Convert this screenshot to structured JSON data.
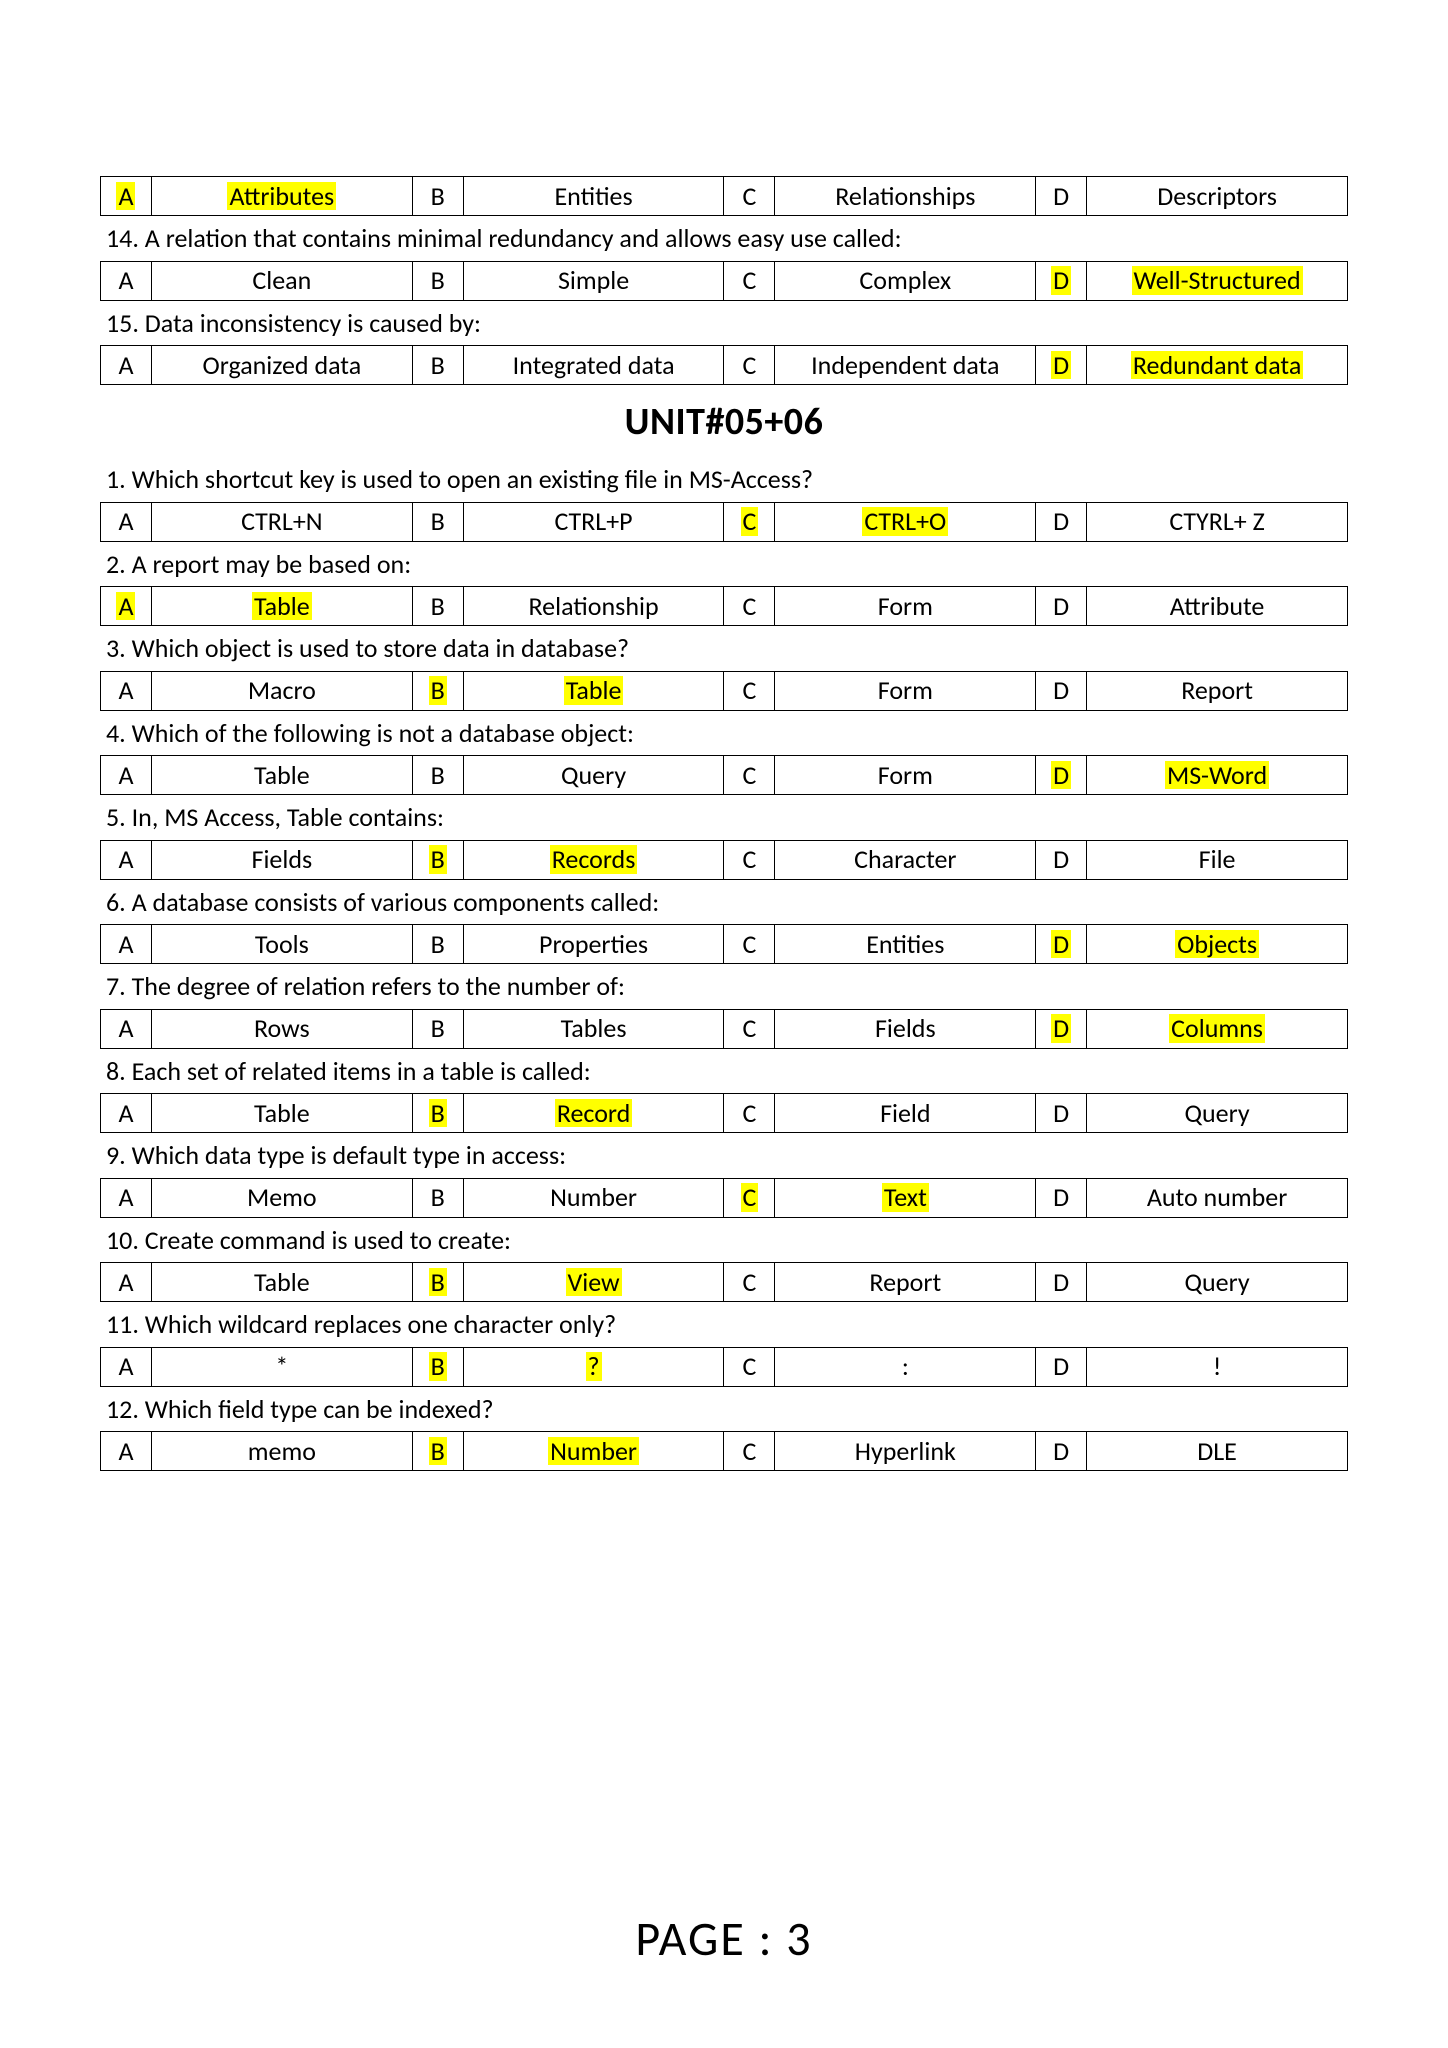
{
  "colors": {
    "highlight_bg": "#ffff00",
    "page_bg": "#ffffff",
    "text_color": "#000000",
    "border_color": "#000000"
  },
  "fontsizes": {
    "body_pt": 26,
    "unit_title_pt": 38,
    "footer_pt": 48
  },
  "preUnit": {
    "row13": {
      "A": {
        "letter": "A",
        "value": "Attributes",
        "letter_hl": true,
        "value_hl": true
      },
      "B": {
        "letter": "B",
        "value": "Entities"
      },
      "C": {
        "letter": "C",
        "value": "Relationships"
      },
      "D": {
        "letter": "D",
        "value": "Descriptors"
      }
    },
    "q14_text": "14. A relation that contains minimal redundancy and allows easy use called:",
    "row14": {
      "A": {
        "letter": "A",
        "value": "Clean"
      },
      "B": {
        "letter": "B",
        "value": "Simple"
      },
      "C": {
        "letter": "C",
        "value": "Complex"
      },
      "D": {
        "letter": "D",
        "value": "Well-Structured",
        "letter_hl": true,
        "value_hl": true
      }
    },
    "q15_text": "15. Data inconsistency is caused by:",
    "row15": {
      "A": {
        "letter": "A",
        "value": "Organized data"
      },
      "B": {
        "letter": "B",
        "value": "Integrated data"
      },
      "C": {
        "letter": "C",
        "value": "Independent data"
      },
      "D": {
        "letter": "D",
        "value": "Redundant data",
        "letter_hl": true,
        "value_hl": true
      }
    }
  },
  "unit_title": "UNIT#05+06",
  "questions": [
    {
      "text": "1. Which shortcut key is used to open an existing file in MS-Access?",
      "row": {
        "A": {
          "letter": "A",
          "value": "CTRL+N"
        },
        "B": {
          "letter": "B",
          "value": "CTRL+P"
        },
        "C": {
          "letter": "C",
          "value": "CTRL+O",
          "letter_hl": true,
          "value_hl": true
        },
        "D": {
          "letter": "D",
          "value": "CTYRL+ Z"
        }
      }
    },
    {
      "text": "2. A report may be based on:",
      "row": {
        "A": {
          "letter": "A",
          "value": "Table",
          "letter_hl": true,
          "value_hl": true
        },
        "B": {
          "letter": "B",
          "value": "Relationship"
        },
        "C": {
          "letter": "C",
          "value": "Form"
        },
        "D": {
          "letter": "D",
          "value": "Attribute"
        }
      }
    },
    {
      "text": "3. Which object is used to store data in database?",
      "row": {
        "A": {
          "letter": "A",
          "value": "Macro"
        },
        "B": {
          "letter": "B",
          "value": "Table",
          "letter_hl": true,
          "value_hl": true
        },
        "C": {
          "letter": "C",
          "value": "Form"
        },
        "D": {
          "letter": "D",
          "value": "Report"
        }
      }
    },
    {
      "text": "4. Which of the following is not a database object:",
      "row": {
        "A": {
          "letter": "A",
          "value": "Table"
        },
        "B": {
          "letter": "B",
          "value": "Query"
        },
        "C": {
          "letter": "C",
          "value": "Form"
        },
        "D": {
          "letter": "D",
          "value": "MS-Word",
          "letter_hl": true,
          "value_hl": true
        }
      }
    },
    {
      "text": "5. In, MS Access, Table contains:",
      "row": {
        "A": {
          "letter": "A",
          "value": "Fields"
        },
        "B": {
          "letter": "B",
          "value": "Records",
          "letter_hl": true,
          "value_hl": true
        },
        "C": {
          "letter": "C",
          "value": "Character"
        },
        "D": {
          "letter": "D",
          "value": "File"
        }
      }
    },
    {
      "text": "6. A database consists of various components called:",
      "row": {
        "A": {
          "letter": "A",
          "value": "Tools"
        },
        "B": {
          "letter": "B",
          "value": "Properties"
        },
        "C": {
          "letter": "C",
          "value": "Entities"
        },
        "D": {
          "letter": "D",
          "value": "Objects",
          "letter_hl": true,
          "value_hl": true
        }
      }
    },
    {
      "text": "7. The degree of relation refers to the number of:",
      "row": {
        "A": {
          "letter": "A",
          "value": "Rows"
        },
        "B": {
          "letter": "B",
          "value": "Tables"
        },
        "C": {
          "letter": "C",
          "value": "Fields"
        },
        "D": {
          "letter": "D",
          "value": "Columns",
          "letter_hl": true,
          "value_hl": true
        }
      }
    },
    {
      "text": "8. Each set of related items in a table is called:",
      "row": {
        "A": {
          "letter": "A",
          "value": "Table"
        },
        "B": {
          "letter": "B",
          "value": "Record",
          "letter_hl": true,
          "value_hl": true
        },
        "C": {
          "letter": "C",
          "value": "Field"
        },
        "D": {
          "letter": "D",
          "value": "Query"
        }
      }
    },
    {
      "text": "9. Which data type is default type in access:",
      "row": {
        "A": {
          "letter": "A",
          "value": "Memo"
        },
        "B": {
          "letter": "B",
          "value": "Number"
        },
        "C": {
          "letter": "C",
          "value": "Text",
          "letter_hl": true,
          "value_hl": true
        },
        "D": {
          "letter": "D",
          "value": "Auto number"
        }
      }
    },
    {
      "text": "10. Create command is used to create:",
      "row": {
        "A": {
          "letter": "A",
          "value": "Table"
        },
        "B": {
          "letter": "B",
          "value": "View",
          "letter_hl": true,
          "value_hl": true
        },
        "C": {
          "letter": "C",
          "value": "Report"
        },
        "D": {
          "letter": "D",
          "value": "Query"
        }
      }
    },
    {
      "text": "11. Which wildcard replaces one character only?",
      "row": {
        "A": {
          "letter": "A",
          "value": "*"
        },
        "B": {
          "letter": "B",
          "value": "?",
          "letter_hl": true,
          "value_hl": true
        },
        "C": {
          "letter": "C",
          "value": ":"
        },
        "D": {
          "letter": "D",
          "value": "!"
        }
      }
    },
    {
      "text": "12. Which field type can be indexed?",
      "row": {
        "A": {
          "letter": "A",
          "value": "memo"
        },
        "B": {
          "letter": "B",
          "value": "Number",
          "letter_hl": true,
          "value_hl": true
        },
        "C": {
          "letter": "C",
          "value": "Hyperlink"
        },
        "D": {
          "letter": "D",
          "value": "DLE"
        }
      }
    }
  ],
  "footer": "PAGE : 3"
}
